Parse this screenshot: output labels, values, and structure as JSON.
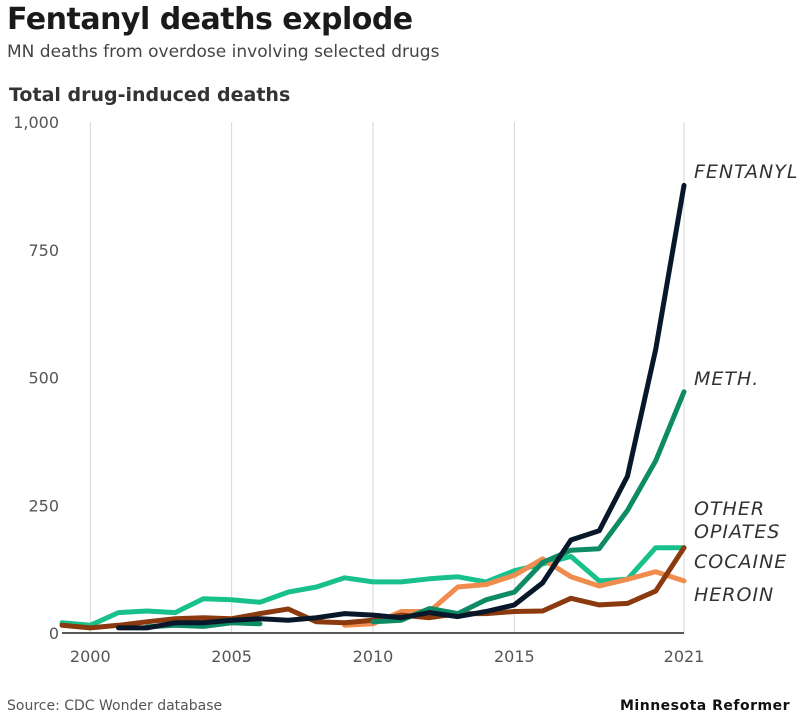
{
  "header": {
    "title": "Fentanyl deaths explode",
    "subtitle": "MN deaths from overdose involving selected drugs",
    "chart_title": "Total drug-induced deaths"
  },
  "footer": {
    "source": "Source: CDC Wonder database",
    "brand": "Minnesota Reformer"
  },
  "chart_data": {
    "type": "line",
    "title": "Total drug-induced deaths",
    "xlabel": "",
    "ylabel": "",
    "xlim": [
      1999,
      2021
    ],
    "ylim": [
      0,
      1000
    ],
    "x_ticks": [
      2000,
      2005,
      2010,
      2015,
      2021
    ],
    "x_tick_labels": [
      "2000",
      "2005",
      "2010",
      "2015",
      "2021"
    ],
    "y_ticks": [
      0,
      250,
      500,
      750,
      1000
    ],
    "y_tick_labels": [
      "0",
      "250",
      "500",
      "750",
      "1,000"
    ],
    "grid": "vertical",
    "legend": "direct labels at line ends",
    "series": [
      {
        "name": "Other opiates",
        "label_lines": [
          "OTHER",
          "OPIATES"
        ],
        "color": "#18c08c",
        "x": [
          1999,
          2000,
          2001,
          2002,
          2003,
          2004,
          2005,
          2006,
          2007,
          2008,
          2009,
          2010,
          2011,
          2012,
          2013,
          2014,
          2015,
          2016,
          2017,
          2018,
          2019,
          2020,
          2021
        ],
        "y": [
          20,
          15,
          40,
          43,
          40,
          67,
          65,
          60,
          80,
          90,
          108,
          100,
          100,
          106,
          110,
          100,
          122,
          135,
          150,
          102,
          105,
          167,
          167
        ]
      },
      {
        "name": "Heroin",
        "label_lines": [
          "HEROIN"
        ],
        "color": "#ef8c4e",
        "x": [
          2009,
          2010,
          2011,
          2012,
          2013,
          2014,
          2015,
          2016,
          2017,
          2018,
          2019,
          2020,
          2021
        ],
        "y": [
          15,
          18,
          42,
          42,
          90,
          95,
          113,
          145,
          110,
          92,
          105,
          120,
          102
        ]
      },
      {
        "name": "Cocaine",
        "label_lines": [
          "COCAINE"
        ],
        "color": "#8a3a0e",
        "x": [
          1999,
          2000,
          2001,
          2002,
          2003,
          2004,
          2005,
          2006,
          2007,
          2008,
          2009,
          2010,
          2011,
          2012,
          2013,
          2014,
          2015,
          2016,
          2017,
          2018,
          2019,
          2020,
          2021
        ],
        "y": [
          15,
          10,
          15,
          22,
          28,
          30,
          28,
          38,
          47,
          22,
          20,
          25,
          35,
          30,
          38,
          38,
          42,
          43,
          68,
          55,
          58,
          82,
          167
        ]
      },
      {
        "name": "Meth.",
        "label_lines": [
          "METH."
        ],
        "color": "#0c8b64",
        "x": [
          2002,
          2003,
          2004,
          2005,
          2006,
          null,
          2010,
          2011,
          2012,
          2013,
          2014,
          2015,
          2016,
          2017,
          2018,
          2019,
          2020,
          2021
        ],
        "y": [
          12,
          15,
          13,
          20,
          18,
          null,
          22,
          25,
          48,
          38,
          65,
          80,
          138,
          162,
          165,
          240,
          337,
          472
        ]
      },
      {
        "name": "Fentanyl",
        "label_lines": [
          "FENTANYL"
        ],
        "color": "#08182a",
        "x": [
          2001,
          2002,
          2003,
          2004,
          2005,
          2006,
          2007,
          2008,
          2009,
          2010,
          2011,
          2012,
          2013,
          2014,
          2015,
          2016,
          2017,
          2018,
          2019,
          2020,
          2021
        ],
        "y": [
          10,
          10,
          20,
          20,
          25,
          28,
          25,
          30,
          38,
          35,
          30,
          40,
          32,
          42,
          55,
          98,
          182,
          200,
          307,
          555,
          876
        ]
      }
    ]
  }
}
